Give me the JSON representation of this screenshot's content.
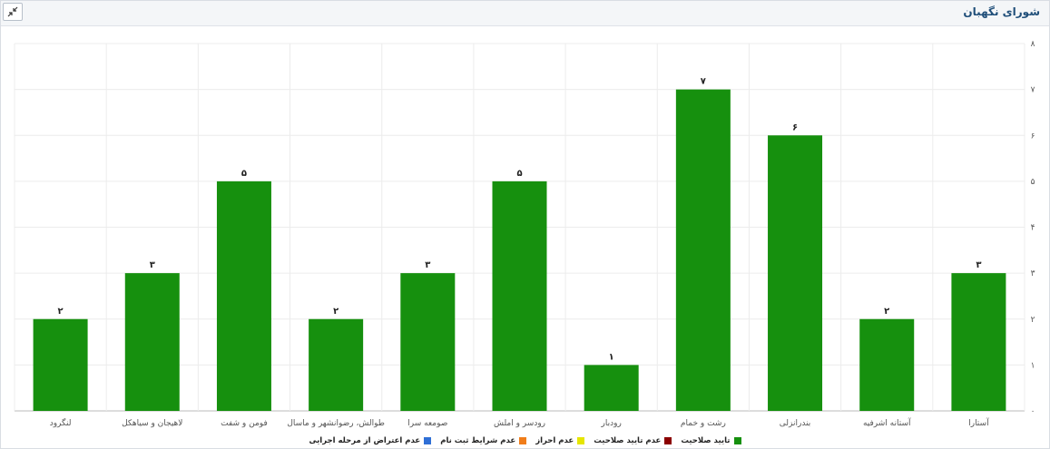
{
  "panel": {
    "title": "شورای نگهبان"
  },
  "chart_data": {
    "type": "bar",
    "categories": [
      "آستارا",
      "آستانه اشرفیه",
      "بندرانزلی",
      "رشت و خمام",
      "رودبار",
      "رودسر و املش",
      "صومعه سرا",
      "طوالش، رضوانشهر و ماسال",
      "فومن و شفت",
      "لاهیجان و سیاهکل",
      "لنگرود"
    ],
    "values": [
      3,
      2,
      6,
      7,
      1,
      5,
      3,
      2,
      5,
      3,
      2
    ],
    "value_labels": [
      "۳",
      "۲",
      "۶",
      "۷",
      "۱",
      "۵",
      "۳",
      "۲",
      "۵",
      "۳",
      "۲"
    ],
    "ylim": [
      0,
      8
    ],
    "y_ticks": [
      "۰",
      "۱",
      "۲",
      "۳",
      "۴",
      "۵",
      "۶",
      "۷",
      "۸"
    ],
    "y_axis_side": "right",
    "x_direction": "right-to-left",
    "grid": true,
    "bar_color": "#16900e",
    "legend_position": "bottom",
    "legend": [
      {
        "label": "تایید صلاحیت",
        "color": "#16900e"
      },
      {
        "label": "عدم تایید صلاحیت",
        "color": "#8b0000"
      },
      {
        "label": "عدم احراز",
        "color": "#e6e600"
      },
      {
        "label": "عدم شرایط ثبت نام",
        "color": "#f07d1a"
      },
      {
        "label": "عدم اعتراض از مرحله اجرایی",
        "color": "#2f6fd6"
      }
    ]
  }
}
